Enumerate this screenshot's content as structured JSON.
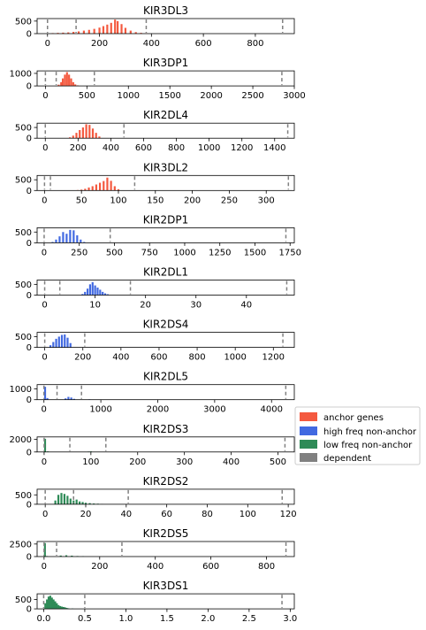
{
  "legend": {
    "items": [
      {
        "label": "anchor genes",
        "color": "#f4593f"
      },
      {
        "label": "high freq non-anchor",
        "color": "#4169e1"
      },
      {
        "label": "low freq non-anchor",
        "color": "#2e8b57"
      },
      {
        "label": "dependent",
        "color": "#808080"
      }
    ]
  },
  "chart_data": [
    {
      "type": "bar",
      "title": "KIR3DL3",
      "series_color": "#f4593f",
      "xlim": [
        -40,
        950
      ],
      "ylim": [
        0,
        600
      ],
      "xticks": [
        {
          "v": 0,
          "l": "0"
        },
        {
          "v": 200,
          "l": "200"
        },
        {
          "v": 400,
          "l": "400"
        },
        {
          "v": 600,
          "l": "600"
        },
        {
          "v": 800,
          "l": "800"
        }
      ],
      "yticks": [
        {
          "v": 0,
          "l": "0"
        },
        {
          "v": 500,
          "l": "500"
        }
      ],
      "vlines": [
        0,
        110,
        380,
        905
      ],
      "bins": [
        [
          20,
          20
        ],
        [
          40,
          30
        ],
        [
          60,
          40
        ],
        [
          80,
          50
        ],
        [
          100,
          70
        ],
        [
          120,
          90
        ],
        [
          140,
          120
        ],
        [
          160,
          150
        ],
        [
          180,
          190
        ],
        [
          200,
          240
        ],
        [
          215,
          300
        ],
        [
          230,
          360
        ],
        [
          245,
          430
        ],
        [
          260,
          560
        ],
        [
          270,
          500
        ],
        [
          285,
          380
        ],
        [
          300,
          230
        ],
        [
          320,
          120
        ],
        [
          340,
          60
        ],
        [
          360,
          30
        ],
        [
          380,
          15
        ]
      ]
    },
    {
      "type": "bar",
      "title": "KIR3DP1",
      "series_color": "#f4593f",
      "xlim": [
        -100,
        3000
      ],
      "ylim": [
        0,
        1200
      ],
      "xticks": [
        {
          "v": 0,
          "l": "0"
        },
        {
          "v": 500,
          "l": "500"
        },
        {
          "v": 1000,
          "l": "1000"
        },
        {
          "v": 1500,
          "l": "1500"
        },
        {
          "v": 2000,
          "l": "2000"
        },
        {
          "v": 2500,
          "l": "2500"
        },
        {
          "v": 3000,
          "l": "3000"
        }
      ],
      "yticks": [
        {
          "v": 0,
          "l": "0"
        },
        {
          "v": 1000,
          "l": "1000"
        }
      ],
      "vlines": [
        0,
        130,
        590,
        2850
      ],
      "bins": [
        [
          160,
          100
        ],
        [
          190,
          300
        ],
        [
          210,
          600
        ],
        [
          235,
          900
        ],
        [
          260,
          1100
        ],
        [
          285,
          900
        ],
        [
          310,
          600
        ],
        [
          335,
          300
        ],
        [
          360,
          120
        ],
        [
          390,
          40
        ]
      ]
    },
    {
      "type": "bar",
      "title": "KIR2DL4",
      "series_color": "#f4593f",
      "xlim": [
        -50,
        1520
      ],
      "ylim": [
        0,
        700
      ],
      "xticks": [
        {
          "v": 0,
          "l": "0"
        },
        {
          "v": 200,
          "l": "200"
        },
        {
          "v": 400,
          "l": "400"
        },
        {
          "v": 600,
          "l": "600"
        },
        {
          "v": 800,
          "l": "800"
        },
        {
          "v": 1000,
          "l": "1000"
        },
        {
          "v": 1200,
          "l": "1200"
        },
        {
          "v": 1400,
          "l": "1400"
        }
      ],
      "yticks": [
        {
          "v": 0,
          "l": "0"
        },
        {
          "v": 500,
          "l": "500"
        }
      ],
      "vlines": [
        0,
        480,
        1480
      ],
      "bins": [
        [
          150,
          40
        ],
        [
          170,
          120
        ],
        [
          190,
          250
        ],
        [
          210,
          380
        ],
        [
          230,
          500
        ],
        [
          250,
          650
        ],
        [
          270,
          620
        ],
        [
          290,
          450
        ],
        [
          310,
          250
        ],
        [
          330,
          80
        ]
      ]
    },
    {
      "type": "bar",
      "title": "KIR3DL2",
      "series_color": "#f4593f",
      "xlim": [
        -10,
        338
      ],
      "ylim": [
        0,
        700
      ],
      "xticks": [
        {
          "v": 0,
          "l": "0"
        },
        {
          "v": 50,
          "l": "50"
        },
        {
          "v": 100,
          "l": "100"
        },
        {
          "v": 150,
          "l": "150"
        },
        {
          "v": 200,
          "l": "200"
        },
        {
          "v": 250,
          "l": "250"
        },
        {
          "v": 300,
          "l": "300"
        }
      ],
      "yticks": [
        {
          "v": 0,
          "l": "0"
        },
        {
          "v": 500,
          "l": "500"
        }
      ],
      "vlines": [
        0,
        8,
        122,
        330
      ],
      "bins": [
        [
          45,
          20
        ],
        [
          50,
          40
        ],
        [
          55,
          80
        ],
        [
          60,
          140
        ],
        [
          65,
          200
        ],
        [
          70,
          280
        ],
        [
          75,
          360
        ],
        [
          80,
          440
        ],
        [
          85,
          600
        ],
        [
          90,
          450
        ],
        [
          95,
          200
        ],
        [
          100,
          60
        ]
      ]
    },
    {
      "type": "bar",
      "title": "KIR2DP1",
      "series_color": "#4169e1",
      "xlim": [
        -50,
        1780
      ],
      "ylim": [
        0,
        700
      ],
      "xticks": [
        {
          "v": 0,
          "l": "0"
        },
        {
          "v": 250,
          "l": "250"
        },
        {
          "v": 500,
          "l": "500"
        },
        {
          "v": 750,
          "l": "750"
        },
        {
          "v": 1000,
          "l": "1000"
        },
        {
          "v": 1250,
          "l": "1250"
        },
        {
          "v": 1500,
          "l": "1500"
        },
        {
          "v": 1750,
          "l": "1750"
        }
      ],
      "yticks": [
        {
          "v": 0,
          "l": "0"
        },
        {
          "v": 500,
          "l": "500"
        }
      ],
      "vlines": [
        0,
        470,
        1720
      ],
      "bins": [
        [
          60,
          40
        ],
        [
          85,
          150
        ],
        [
          110,
          300
        ],
        [
          135,
          500
        ],
        [
          160,
          420
        ],
        [
          185,
          600
        ],
        [
          210,
          580
        ],
        [
          235,
          350
        ],
        [
          260,
          150
        ],
        [
          285,
          40
        ]
      ]
    },
    {
      "type": "bar",
      "title": "KIR2DL1",
      "series_color": "#4169e1",
      "xlim": [
        -1.5,
        49.5
      ],
      "ylim": [
        0,
        700
      ],
      "xticks": [
        {
          "v": 0,
          "l": "0"
        },
        {
          "v": 10,
          "l": "10"
        },
        {
          "v": 20,
          "l": "20"
        },
        {
          "v": 30,
          "l": "30"
        },
        {
          "v": 40,
          "l": "40"
        }
      ],
      "yticks": [
        {
          "v": 0,
          "l": "0"
        },
        {
          "v": 500,
          "l": "500"
        }
      ],
      "vlines": [
        0,
        3,
        17,
        48
      ],
      "bins": [
        [
          7.5,
          50
        ],
        [
          8,
          150
        ],
        [
          8.5,
          300
        ],
        [
          9,
          500
        ],
        [
          9.5,
          600
        ],
        [
          10,
          450
        ],
        [
          10.5,
          350
        ],
        [
          11,
          250
        ],
        [
          11.5,
          150
        ],
        [
          12,
          80
        ],
        [
          12.5,
          40
        ]
      ]
    },
    {
      "type": "bar",
      "title": "KIR2DS4",
      "series_color": "#4169e1",
      "xlim": [
        -40,
        1310
      ],
      "ylim": [
        0,
        700
      ],
      "xticks": [
        {
          "v": 0,
          "l": "0"
        },
        {
          "v": 200,
          "l": "200"
        },
        {
          "v": 400,
          "l": "400"
        },
        {
          "v": 600,
          "l": "600"
        },
        {
          "v": 800,
          "l": "800"
        },
        {
          "v": 1000,
          "l": "1000"
        },
        {
          "v": 1200,
          "l": "1200"
        }
      ],
      "yticks": [
        {
          "v": 0,
          "l": "0"
        },
        {
          "v": 500,
          "l": "500"
        }
      ],
      "vlines": [
        0,
        210,
        1250
      ],
      "bins": [
        [
          30,
          100
        ],
        [
          45,
          250
        ],
        [
          60,
          400
        ],
        [
          75,
          500
        ],
        [
          90,
          580
        ],
        [
          105,
          600
        ],
        [
          120,
          450
        ],
        [
          135,
          200
        ]
      ]
    },
    {
      "type": "bar",
      "title": "KIR2DL5",
      "series_color": "#4169e1",
      "xlim": [
        -120,
        4400
      ],
      "ylim": [
        0,
        1400
      ],
      "xticks": [
        {
          "v": 0,
          "l": "0"
        },
        {
          "v": 1000,
          "l": "1000"
        },
        {
          "v": 2000,
          "l": "2000"
        },
        {
          "v": 3000,
          "l": "3000"
        },
        {
          "v": 4000,
          "l": "4000"
        }
      ],
      "yticks": [
        {
          "v": 0,
          "l": "0"
        },
        {
          "v": 1000,
          "l": "1000"
        }
      ],
      "vlines": [
        0,
        230,
        660,
        4250
      ],
      "bins": [
        [
          20,
          1200
        ],
        [
          60,
          150
        ],
        [
          380,
          120
        ],
        [
          430,
          260
        ],
        [
          480,
          200
        ],
        [
          530,
          80
        ],
        [
          800,
          30
        ]
      ]
    },
    {
      "type": "bar",
      "title": "KIR2DS3",
      "series_color": "#2e8b57",
      "xlim": [
        -15,
        535
      ],
      "ylim": [
        0,
        2400
      ],
      "xticks": [
        {
          "v": 0,
          "l": "0"
        },
        {
          "v": 100,
          "l": "100"
        },
        {
          "v": 200,
          "l": "200"
        },
        {
          "v": 300,
          "l": "300"
        },
        {
          "v": 400,
          "l": "400"
        },
        {
          "v": 500,
          "l": "500"
        }
      ],
      "yticks": [
        {
          "v": 0,
          "l": "0"
        },
        {
          "v": 2000,
          "l": "2000"
        }
      ],
      "vlines": [
        0,
        55,
        132,
        515
      ],
      "bins": [
        [
          2,
          2100
        ],
        [
          8,
          80
        ],
        [
          95,
          60
        ],
        [
          100,
          90
        ],
        [
          105,
          40
        ]
      ]
    },
    {
      "type": "bar",
      "title": "KIR2DS2",
      "series_color": "#2e8b57",
      "xlim": [
        -4,
        123
      ],
      "ylim": [
        0,
        800
      ],
      "xticks": [
        {
          "v": 0,
          "l": "0"
        },
        {
          "v": 20,
          "l": "20"
        },
        {
          "v": 40,
          "l": "40"
        },
        {
          "v": 60,
          "l": "60"
        },
        {
          "v": 80,
          "l": "80"
        },
        {
          "v": 100,
          "l": "100"
        },
        {
          "v": 120,
          "l": "120"
        }
      ],
      "yticks": [
        {
          "v": 0,
          "l": "0"
        },
        {
          "v": 500,
          "l": "500"
        }
      ],
      "vlines": [
        0,
        14,
        41,
        117
      ],
      "bins": [
        [
          5,
          200
        ],
        [
          6.5,
          500
        ],
        [
          8,
          600
        ],
        [
          9.5,
          550
        ],
        [
          11,
          450
        ],
        [
          12.5,
          300
        ],
        [
          14,
          200
        ],
        [
          15.5,
          250
        ],
        [
          17,
          150
        ],
        [
          18.5,
          120
        ],
        [
          20,
          80
        ],
        [
          22,
          60
        ],
        [
          24,
          40
        ],
        [
          26,
          30
        ],
        [
          28,
          20
        ],
        [
          30,
          15
        ],
        [
          34,
          8
        ]
      ]
    },
    {
      "type": "bar",
      "title": "KIR2DS5",
      "series_color": "#2e8b57",
      "xlim": [
        -25,
        900
      ],
      "ylim": [
        0,
        3000
      ],
      "xticks": [
        {
          "v": 0,
          "l": "0"
        },
        {
          "v": 200,
          "l": "200"
        },
        {
          "v": 400,
          "l": "400"
        },
        {
          "v": 600,
          "l": "600"
        },
        {
          "v": 800,
          "l": "800"
        }
      ],
      "yticks": [
        {
          "v": 0,
          "l": "0"
        },
        {
          "v": 2500,
          "l": "2500"
        }
      ],
      "vlines": [
        0,
        45,
        280,
        870
      ],
      "bins": [
        [
          3,
          2700
        ],
        [
          10,
          100
        ],
        [
          60,
          200
        ],
        [
          80,
          260
        ],
        [
          100,
          180
        ],
        [
          120,
          100
        ],
        [
          140,
          60
        ]
      ]
    },
    {
      "type": "bar",
      "title": "KIR3DS1",
      "series_color": "#2e8b57",
      "xlim": [
        -0.08,
        3.05
      ],
      "ylim": [
        0,
        800
      ],
      "xticks": [
        {
          "v": 0,
          "l": "0.0"
        },
        {
          "v": 0.5,
          "l": "0.5"
        },
        {
          "v": 1.0,
          "l": "1.0"
        },
        {
          "v": 1.5,
          "l": "1.5"
        },
        {
          "v": 2.0,
          "l": "2.0"
        },
        {
          "v": 2.5,
          "l": "2.5"
        },
        {
          "v": 3.0,
          "l": "3.0"
        }
      ],
      "yticks": [
        {
          "v": 0,
          "l": "0"
        },
        {
          "v": 500,
          "l": "500"
        }
      ],
      "vlines": [
        0,
        0.5,
        2.9
      ],
      "bins": [
        [
          0.02,
          300
        ],
        [
          0.04,
          500
        ],
        [
          0.06,
          650
        ],
        [
          0.08,
          700
        ],
        [
          0.1,
          600
        ],
        [
          0.12,
          500
        ],
        [
          0.14,
          400
        ],
        [
          0.16,
          300
        ],
        [
          0.18,
          200
        ],
        [
          0.2,
          150
        ],
        [
          0.22,
          120
        ],
        [
          0.24,
          100
        ],
        [
          0.26,
          80
        ],
        [
          0.28,
          50
        ],
        [
          0.3,
          30
        ],
        [
          0.35,
          15
        ]
      ]
    }
  ]
}
